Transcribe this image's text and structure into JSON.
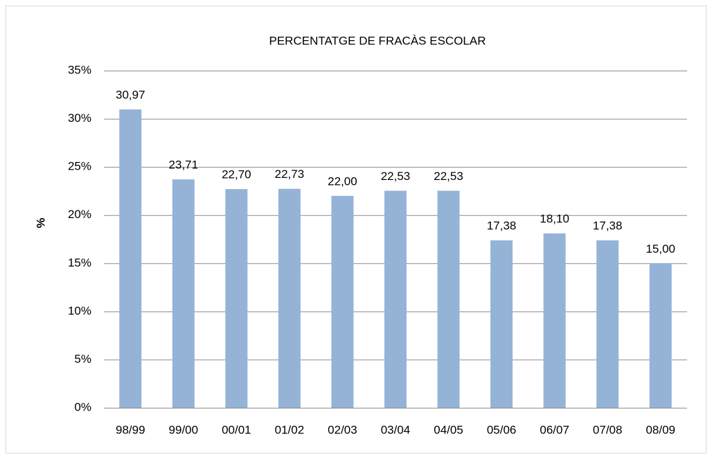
{
  "chart_data": {
    "type": "bar",
    "title": "PERCENTATGE DE FRACÀS ESCOLAR",
    "y_label": "%",
    "categories": [
      "98/99",
      "99/00",
      "00/01",
      "01/02",
      "02/03",
      "03/04",
      "04/05",
      "05/06",
      "06/07",
      "07/08",
      "08/09"
    ],
    "values": [
      30.97,
      23.71,
      22.7,
      22.73,
      22.0,
      22.53,
      22.53,
      17.38,
      18.1,
      17.38,
      15.0
    ],
    "value_labels": [
      "30,97",
      "23,71",
      "22,70",
      "22,73",
      "22,00",
      "22,53",
      "22,53",
      "17,38",
      "18,10",
      "17,38",
      "15,00"
    ],
    "color": "#95b3d7",
    "ylim": [
      0,
      35
    ],
    "yticks": [
      {
        "value": 0,
        "label": "0%"
      },
      {
        "value": 5,
        "label": "5%"
      },
      {
        "value": 10,
        "label": "10%"
      },
      {
        "value": 15,
        "label": "15%"
      },
      {
        "value": 20,
        "label": "20%"
      },
      {
        "value": 25,
        "label": "25%"
      },
      {
        "value": 30,
        "label": "30%"
      },
      {
        "value": 35,
        "label": "35%"
      }
    ],
    "grid": true
  }
}
